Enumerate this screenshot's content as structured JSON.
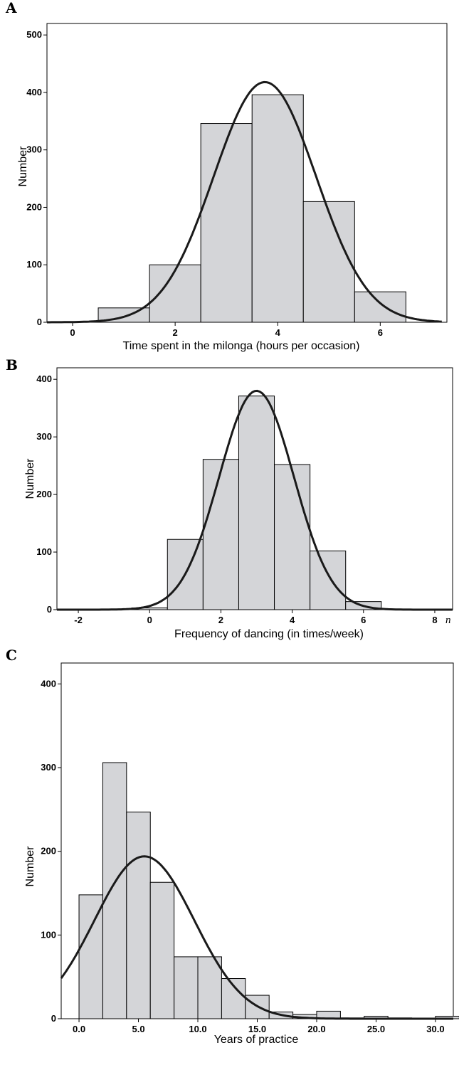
{
  "chart_data": [
    {
      "panel": "A",
      "type": "bar",
      "xlabel": "Time spent in the milonga (hours per occasion)",
      "ylabel": "Number",
      "xlim": [
        -0.5,
        7.3
      ],
      "ylim": [
        0,
        520
      ],
      "xticks": [
        0,
        2,
        4,
        6
      ],
      "xtick_labels": [
        "0",
        "2",
        "4",
        "6"
      ],
      "yticks": [
        0,
        100,
        200,
        300,
        400,
        500
      ],
      "ytick_labels": [
        "0",
        "100",
        "200",
        "300",
        "400",
        "500"
      ],
      "bins": [
        {
          "x0": 0.5,
          "x1": 1.5,
          "value": 25
        },
        {
          "x0": 1.5,
          "x1": 2.5,
          "value": 100
        },
        {
          "x0": 2.5,
          "x1": 3.5,
          "value": 346
        },
        {
          "x0": 3.5,
          "x1": 4.5,
          "value": 396
        },
        {
          "x0": 4.5,
          "x1": 5.5,
          "value": 210
        },
        {
          "x0": 5.5,
          "x1": 6.5,
          "value": 53
        }
      ],
      "curve": {
        "type": "normal",
        "mean": 3.75,
        "sd": 1.0,
        "peak": 418,
        "x_range": [
          -0.5,
          7.2
        ]
      }
    },
    {
      "panel": "B",
      "type": "bar",
      "xlabel": "Frequency of dancing (in times/week)",
      "ylabel": "Number",
      "annotation": "n",
      "xlim": [
        -2.6,
        8.5
      ],
      "ylim": [
        0,
        420
      ],
      "xticks": [
        -2,
        0,
        2,
        4,
        6,
        8
      ],
      "xtick_labels": [
        "-2",
        "0",
        "2",
        "4",
        "6",
        "8"
      ],
      "yticks": [
        0,
        100,
        200,
        300,
        400
      ],
      "ytick_labels": [
        "0",
        "100",
        "200",
        "300",
        "400"
      ],
      "bins": [
        {
          "x0": -0.5,
          "x1": 0.5,
          "value": 3
        },
        {
          "x0": 0.5,
          "x1": 1.5,
          "value": 122
        },
        {
          "x0": 1.5,
          "x1": 2.5,
          "value": 261
        },
        {
          "x0": 2.5,
          "x1": 3.5,
          "value": 371
        },
        {
          "x0": 3.5,
          "x1": 4.5,
          "value": 252
        },
        {
          "x0": 4.5,
          "x1": 5.5,
          "value": 102
        },
        {
          "x0": 5.5,
          "x1": 6.5,
          "value": 14
        },
        {
          "x0": 6.5,
          "x1": 7.5,
          "value": 1
        }
      ],
      "curve": {
        "type": "normal",
        "mean": 3.0,
        "sd": 1.05,
        "peak": 380,
        "x_range": [
          -2.6,
          8.5
        ]
      }
    },
    {
      "panel": "C",
      "type": "bar",
      "xlabel": "Years of practice",
      "ylabel": "Number",
      "xlim": [
        -1.5,
        31.5
      ],
      "ylim": [
        0,
        425
      ],
      "xticks": [
        0,
        5,
        10,
        15,
        20,
        25,
        30
      ],
      "xtick_labels": [
        "0.0",
        "5.0",
        "10.0",
        "15.0",
        "20.0",
        "25.0",
        "30.0"
      ],
      "yticks": [
        0,
        100,
        200,
        300,
        400
      ],
      "ytick_labels": [
        "0",
        "100",
        "200",
        "300",
        "400"
      ],
      "bins": [
        {
          "x0": 0,
          "x1": 2,
          "value": 148
        },
        {
          "x0": 2,
          "x1": 4,
          "value": 306
        },
        {
          "x0": 4,
          "x1": 6,
          "value": 247
        },
        {
          "x0": 6,
          "x1": 8,
          "value": 163
        },
        {
          "x0": 8,
          "x1": 10,
          "value": 74
        },
        {
          "x0": 10,
          "x1": 12,
          "value": 74
        },
        {
          "x0": 12,
          "x1": 14,
          "value": 48
        },
        {
          "x0": 14,
          "x1": 16,
          "value": 28
        },
        {
          "x0": 16,
          "x1": 18,
          "value": 8
        },
        {
          "x0": 18,
          "x1": 20,
          "value": 5
        },
        {
          "x0": 20,
          "x1": 22,
          "value": 9
        },
        {
          "x0": 22,
          "x1": 24,
          "value": 1
        },
        {
          "x0": 24,
          "x1": 26,
          "value": 3
        },
        {
          "x0": 26,
          "x1": 28,
          "value": 1
        },
        {
          "x0": 28,
          "x1": 30,
          "value": 0
        },
        {
          "x0": 30,
          "x1": 32,
          "value": 3
        }
      ],
      "curve": {
        "type": "normal",
        "mean": 5.5,
        "sd": 4.2,
        "peak": 194,
        "x_range": [
          -1.5,
          31.5
        ]
      }
    }
  ]
}
